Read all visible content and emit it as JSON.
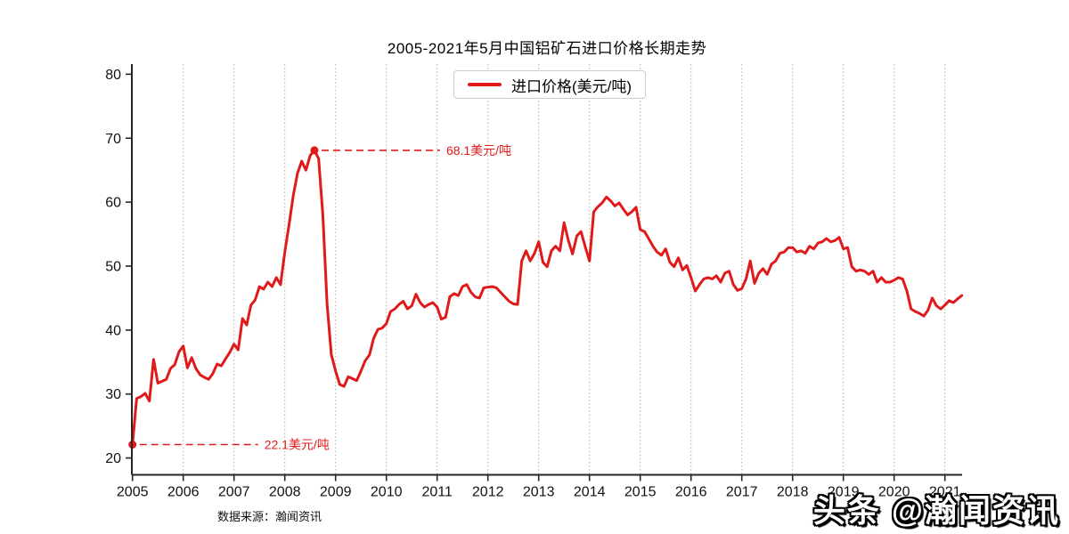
{
  "title": "2005-2021年5月中国铝矿石进口价格长期走势",
  "legend": {
    "label": "进口价格(美元/吨)"
  },
  "source": "数据来源：瀚闻资讯",
  "watermark": "头条 @瀚闻资讯",
  "colors": {
    "line": "#e01a1a",
    "annotation": "#e01a1a",
    "grid": "#b5b5b5",
    "axis": "#262626",
    "tick_text": "#111111"
  },
  "chart_data": {
    "type": "line",
    "title": "2005-2021年5月中国铝矿石进口价格长期走势",
    "xlabel": "",
    "ylabel": "",
    "frequency": "monthly",
    "start": "2005-01",
    "end": "2021-05",
    "x_tick_labels": [
      "2005",
      "2006",
      "2007",
      "2008",
      "2009",
      "2010",
      "2011",
      "2012",
      "2013",
      "2014",
      "2015",
      "2016",
      "2017",
      "2018",
      "2019",
      "2020",
      "2021"
    ],
    "y_ticks": [
      20,
      30,
      40,
      50,
      60,
      70,
      80
    ],
    "ylim": [
      20,
      80
    ],
    "grid": "vertical-dotted",
    "legend_position": "top-center",
    "series": [
      {
        "name": "进口价格(美元/吨)",
        "values": [
          22.1,
          29.3,
          29.6,
          30.1,
          28.9,
          35.4,
          31.7,
          32.0,
          32.3,
          34.0,
          34.6,
          36.6,
          37.5,
          34.1,
          35.7,
          34.0,
          33.0,
          32.6,
          32.3,
          33.2,
          34.7,
          34.4,
          35.5,
          36.5,
          37.8,
          36.9,
          41.8,
          40.8,
          43.9,
          44.7,
          46.8,
          46.4,
          47.5,
          46.8,
          48.2,
          47.1,
          52.2,
          56.4,
          61.0,
          64.5,
          66.4,
          65.0,
          67.3,
          68.1,
          66.8,
          58.0,
          44.0,
          36.2,
          33.6,
          31.5,
          31.2,
          32.7,
          32.4,
          32.1,
          33.6,
          35.2,
          36.1,
          38.7,
          40.1,
          40.3,
          41.0,
          42.9,
          43.3,
          44.0,
          44.5,
          43.3,
          43.8,
          45.6,
          44.3,
          43.6,
          44.0,
          44.3,
          43.6,
          41.7,
          42.0,
          45.2,
          45.7,
          45.4,
          46.8,
          47.1,
          45.9,
          45.2,
          45.0,
          46.6,
          46.7,
          46.8,
          46.6,
          45.9,
          45.2,
          44.5,
          44.1,
          44.0,
          50.8,
          52.4,
          50.8,
          52.0,
          53.8,
          50.6,
          49.9,
          52.4,
          53.1,
          52.4,
          56.8,
          54.0,
          51.9,
          54.7,
          55.4,
          53.0,
          50.8,
          58.5,
          59.3,
          59.9,
          60.8,
          60.2,
          59.4,
          59.9,
          58.9,
          58.0,
          58.5,
          59.2,
          55.7,
          55.4,
          54.3,
          53.1,
          52.2,
          51.7,
          52.7,
          50.6,
          49.9,
          51.3,
          49.4,
          50.1,
          48.2,
          46.1,
          47.1,
          48.0,
          48.2,
          48.0,
          48.5,
          47.5,
          48.9,
          49.2,
          47.1,
          46.2,
          46.5,
          48.0,
          50.8,
          47.3,
          48.9,
          49.6,
          48.7,
          50.3,
          50.8,
          52.0,
          52.2,
          52.9,
          52.9,
          52.2,
          52.4,
          52.0,
          53.1,
          52.7,
          53.6,
          53.8,
          54.3,
          53.8,
          54.0,
          54.5,
          52.7,
          52.9,
          49.9,
          49.2,
          49.4,
          49.2,
          48.7,
          49.2,
          47.5,
          48.2,
          47.5,
          47.5,
          47.8,
          48.2,
          48.0,
          46.1,
          43.3,
          42.9,
          42.6,
          42.2,
          43.1,
          45.0,
          43.8,
          43.3,
          43.9,
          44.6,
          44.3,
          44.9,
          45.4
        ]
      }
    ],
    "annotations": [
      {
        "month": "2008-08",
        "month_index": 43,
        "value": 68.1,
        "label": "68.1美元/吨"
      },
      {
        "month": "2005-01",
        "month_index": 0,
        "value": 22.1,
        "label": "22.1美元/吨"
      }
    ]
  }
}
